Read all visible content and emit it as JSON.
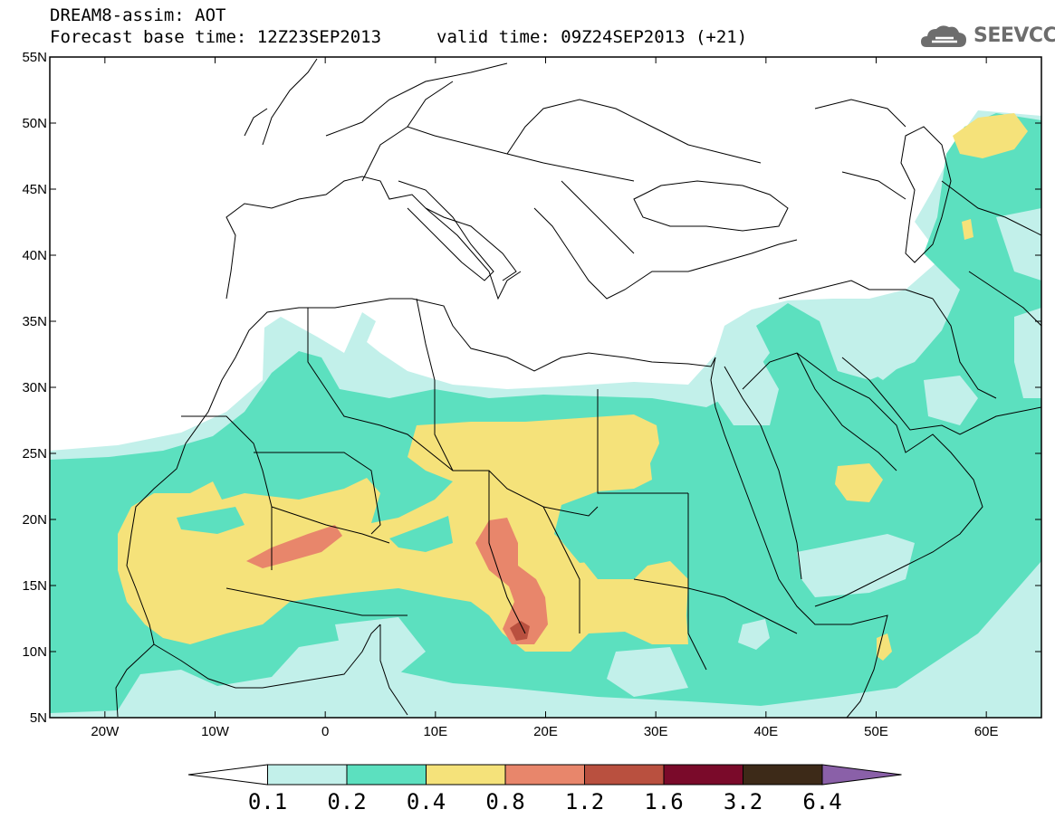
{
  "header": {
    "title": "DREAM8-assim: AOT",
    "base_time": "Forecast base time: 12Z23SEP2013",
    "valid_time": "valid time: 09Z24SEP2013 (+21)"
  },
  "logo": {
    "text": "SEEVCCC",
    "icon": "cloud-logo-icon"
  },
  "map": {
    "lon_range": [
      -25,
      65
    ],
    "lat_range": [
      5,
      55
    ],
    "lat_ticks": [
      "55N",
      "50N",
      "45N",
      "40N",
      "35N",
      "30N",
      "25N",
      "20N",
      "15N",
      "10N",
      "5N"
    ],
    "lon_ticks": [
      "20W",
      "10W",
      "0",
      "10E",
      "20E",
      "30E",
      "40E",
      "50E",
      "60E"
    ]
  },
  "colorbar": {
    "levels": [
      "0.1",
      "0.2",
      "0.4",
      "0.8",
      "1.2",
      "1.6",
      "3.2",
      "6.4"
    ],
    "colors": [
      "#ffffff",
      "#c2f0ea",
      "#5ce0bf",
      "#f5e27a",
      "#e8866b",
      "#b9503f",
      "#7a0a2a",
      "#3d2a18",
      "#8a60a8"
    ]
  },
  "colors": {
    "aot_0_1_0_2": "#c2f0ea",
    "aot_0_2_0_4": "#5ce0bf",
    "aot_0_4_0_8": "#f5e27a",
    "aot_0_8_1_2": "#e8866b",
    "aot_1_2_1_6": "#b9503f"
  }
}
